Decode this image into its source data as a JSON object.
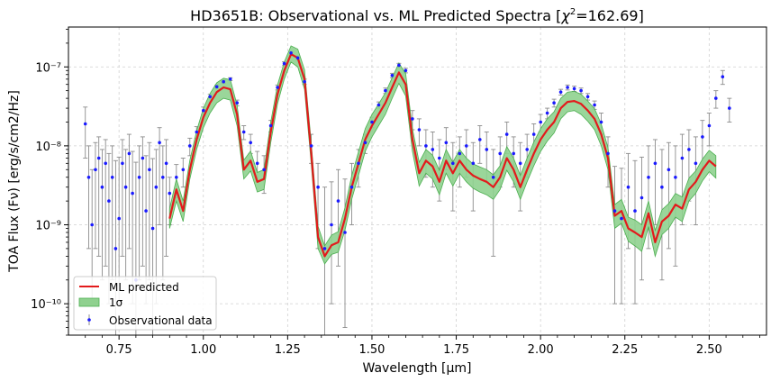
{
  "chart_data": {
    "type": "line",
    "title": "HD3651B: Observational vs. ML Predicted Spectra [χ²=162.69]",
    "title_parts": {
      "main": "HD3651B: Observational vs. ML Predicted Spectra [",
      "chi": "χ",
      "sup": "2",
      "rest": "=162.69]"
    },
    "xlabel": "Wavelength [μm]",
    "ylabel": "TOA Flux (Fν) [erg/s/cm2/Hz]",
    "xlim": [
      0.6,
      2.67
    ],
    "ylim": [
      4e-11,
      3.2e-07
    ],
    "yscale": "log",
    "grid": true,
    "x_ticks": [
      0.75,
      1.0,
      1.25,
      1.5,
      1.75,
      2.0,
      2.25,
      2.5
    ],
    "x_tick_labels": [
      "0.75",
      "1.00",
      "1.25",
      "1.50",
      "1.75",
      "2.00",
      "2.25",
      "2.50"
    ],
    "y_ticks": [
      1e-10,
      1e-09,
      1e-08,
      1e-07
    ],
    "y_tick_labels": [
      "10⁻¹⁰",
      "10⁻⁹",
      "10⁻⁸",
      "10⁻⁷"
    ],
    "legend": {
      "placement": "lower-left",
      "entries": [
        {
          "label": "ML predicted",
          "color": "#e31a1c"
        },
        {
          "label": "1σ",
          "color": "#8fd18f"
        },
        {
          "label": "Observational data",
          "color": "#1a1aff"
        }
      ]
    },
    "colors": {
      "predicted": "#e31a1c",
      "band": "#8fd18f",
      "band_edge": "#4caf50",
      "obs": "#1a1aff",
      "errorbar": "#8c8c8c"
    },
    "series": [
      {
        "name": "ML predicted",
        "x": [
          0.9,
          0.92,
          0.94,
          0.96,
          0.98,
          1.0,
          1.02,
          1.04,
          1.06,
          1.08,
          1.1,
          1.12,
          1.14,
          1.16,
          1.18,
          1.2,
          1.22,
          1.24,
          1.26,
          1.28,
          1.3,
          1.32,
          1.34,
          1.36,
          1.38,
          1.4,
          1.42,
          1.44,
          1.46,
          1.48,
          1.5,
          1.52,
          1.54,
          1.56,
          1.58,
          1.6,
          1.62,
          1.64,
          1.66,
          1.68,
          1.7,
          1.72,
          1.74,
          1.76,
          1.78,
          1.8,
          1.82,
          1.84,
          1.86,
          1.88,
          1.9,
          1.92,
          1.94,
          1.96,
          1.98,
          2.0,
          2.02,
          2.04,
          2.06,
          2.08,
          2.1,
          2.12,
          2.14,
          2.16,
          2.18,
          2.2,
          2.22,
          2.24,
          2.26,
          2.28,
          2.3,
          2.32,
          2.34,
          2.36,
          2.38,
          2.4,
          2.42,
          2.44,
          2.46,
          2.48,
          2.5,
          2.52
        ],
        "y": [
          1.2e-09,
          2.8e-09,
          1.5e-09,
          5e-09,
          1.2e-08,
          2.3e-08,
          3.5e-08,
          4.8e-08,
          5.5e-08,
          5.2e-08,
          2.5e-08,
          5e-09,
          6.5e-09,
          3.5e-09,
          3.8e-09,
          1.5e-08,
          4.5e-08,
          9e-08,
          1.45e-07,
          1.3e-07,
          7e-08,
          8e-09,
          7e-10,
          4e-10,
          5.5e-10,
          6e-10,
          1.2e-09,
          3e-09,
          6e-09,
          1.2e-08,
          1.8e-08,
          2.5e-08,
          3.5e-08,
          5.5e-08,
          8.5e-08,
          6e-08,
          1.2e-08,
          4.5e-09,
          6.5e-09,
          5.5e-09,
          3.5e-09,
          6.5e-09,
          4.5e-09,
          6.5e-09,
          5e-09,
          4.2e-09,
          3.8e-09,
          3.5e-09,
          3e-09,
          4e-09,
          7e-09,
          5e-09,
          3e-09,
          5e-09,
          8e-09,
          1.2e-08,
          1.6e-08,
          2e-08,
          3e-08,
          3.6e-08,
          3.7e-08,
          3.4e-08,
          2.8e-08,
          2.2e-08,
          1.4e-08,
          7e-09,
          1.3e-09,
          1.5e-09,
          9e-10,
          8e-10,
          7e-10,
          1.4e-09,
          6e-10,
          1.1e-09,
          1.3e-09,
          1.8e-09,
          1.6e-09,
          2.8e-09,
          3.5e-09,
          5e-09,
          6.5e-09,
          5.5e-09
        ]
      },
      {
        "name": "1σ",
        "x": [
          0.9,
          0.92,
          0.94,
          0.96,
          0.98,
          1.0,
          1.02,
          1.04,
          1.06,
          1.08,
          1.1,
          1.12,
          1.14,
          1.16,
          1.18,
          1.2,
          1.22,
          1.24,
          1.26,
          1.28,
          1.3,
          1.32,
          1.34,
          1.36,
          1.38,
          1.4,
          1.42,
          1.44,
          1.46,
          1.48,
          1.5,
          1.52,
          1.54,
          1.56,
          1.58,
          1.6,
          1.62,
          1.64,
          1.66,
          1.68,
          1.7,
          1.72,
          1.74,
          1.76,
          1.78,
          1.8,
          1.82,
          1.84,
          1.86,
          1.88,
          1.9,
          1.92,
          1.94,
          1.96,
          1.98,
          2.0,
          2.02,
          2.04,
          2.06,
          2.08,
          2.1,
          2.12,
          2.14,
          2.16,
          2.18,
          2.2,
          2.22,
          2.24,
          2.26,
          2.28,
          2.3,
          2.32,
          2.34,
          2.36,
          2.38,
          2.4,
          2.42,
          2.44,
          2.46,
          2.48,
          2.5,
          2.52
        ],
        "lower": [
          9e-10,
          2e-09,
          1.1e-09,
          3.8e-09,
          9e-09,
          1.7e-08,
          2.6e-08,
          3.5e-08,
          4e-08,
          3.8e-08,
          1.8e-08,
          3.8e-09,
          4.8e-09,
          2.6e-09,
          2.8e-09,
          1.1e-08,
          3.4e-08,
          7e-08,
          1.15e-07,
          1e-07,
          5.2e-08,
          5.8e-09,
          5e-10,
          3.2e-10,
          4.2e-10,
          4.5e-10,
          8.5e-10,
          2.1e-09,
          4.2e-09,
          8.5e-09,
          1.3e-08,
          1.8e-08,
          2.5e-08,
          4e-08,
          6.2e-08,
          4.3e-08,
          8.5e-09,
          3.1e-09,
          4.5e-09,
          3.8e-09,
          2.4e-09,
          4.5e-09,
          3.1e-09,
          4.5e-09,
          3.5e-09,
          2.9e-09,
          2.6e-09,
          2.4e-09,
          2.1e-09,
          2.8e-09,
          4.9e-09,
          3.5e-09,
          2.1e-09,
          3.5e-09,
          5.6e-09,
          8.5e-09,
          1.15e-08,
          1.45e-08,
          2.2e-08,
          2.7e-08,
          2.8e-08,
          2.5e-08,
          2.05e-08,
          1.6e-08,
          1e-08,
          5e-09,
          9e-10,
          1.05e-09,
          6.2e-10,
          5.4e-10,
          4.6e-10,
          9.5e-10,
          4e-10,
          7.5e-10,
          9e-10,
          1.25e-09,
          1.1e-09,
          2e-09,
          2.5e-09,
          3.6e-09,
          4.7e-09,
          3.9e-09
        ],
        "upper": [
          1.6e-09,
          3.8e-09,
          2e-09,
          6.6e-09,
          1.55e-08,
          3e-08,
          4.6e-08,
          6.3e-08,
          7.2e-08,
          6.9e-08,
          3.3e-08,
          6.6e-09,
          8.6e-09,
          4.6e-09,
          5e-09,
          2e-08,
          5.9e-08,
          1.15e-07,
          1.85e-07,
          1.68e-07,
          9.2e-08,
          1.08e-08,
          9.6e-10,
          5.4e-10,
          7.4e-10,
          8.2e-10,
          1.65e-09,
          4.2e-09,
          8.4e-09,
          1.65e-08,
          2.5e-08,
          3.4e-08,
          4.7e-08,
          7.3e-08,
          1.12e-07,
          8.2e-08,
          1.65e-08,
          6.2e-09,
          9e-09,
          7.6e-09,
          4.9e-09,
          9e-09,
          6.2e-09,
          9e-09,
          7e-09,
          5.9e-09,
          5.4e-09,
          5e-09,
          4.3e-09,
          5.6e-09,
          9.8e-09,
          7e-09,
          4.2e-09,
          7e-09,
          1.12e-08,
          1.65e-08,
          2.2e-08,
          2.7e-08,
          4e-08,
          4.8e-08,
          4.9e-08,
          4.5e-08,
          3.7e-08,
          2.95e-08,
          1.9e-08,
          9.5e-09,
          1.8e-09,
          2.1e-09,
          1.25e-09,
          1.15e-09,
          1e-09,
          2e-09,
          8.5e-10,
          1.55e-09,
          1.85e-09,
          2.5e-09,
          2.25e-09,
          3.9e-09,
          4.8e-09,
          6.8e-09,
          8.8e-09,
          7.5e-09
        ]
      },
      {
        "name": "Observational data",
        "x": [
          0.65,
          0.66,
          0.67,
          0.68,
          0.69,
          0.7,
          0.71,
          0.72,
          0.73,
          0.74,
          0.75,
          0.76,
          0.77,
          0.78,
          0.79,
          0.8,
          0.81,
          0.82,
          0.83,
          0.84,
          0.85,
          0.86,
          0.87,
          0.88,
          0.89,
          0.9,
          0.92,
          0.94,
          0.96,
          0.98,
          1.0,
          1.02,
          1.04,
          1.06,
          1.08,
          1.1,
          1.12,
          1.14,
          1.16,
          1.18,
          1.2,
          1.22,
          1.24,
          1.26,
          1.28,
          1.3,
          1.32,
          1.34,
          1.36,
          1.38,
          1.4,
          1.42,
          1.44,
          1.46,
          1.48,
          1.5,
          1.52,
          1.54,
          1.56,
          1.58,
          1.6,
          1.62,
          1.64,
          1.66,
          1.68,
          1.7,
          1.72,
          1.74,
          1.76,
          1.78,
          1.8,
          1.82,
          1.84,
          1.86,
          1.88,
          1.9,
          1.92,
          1.94,
          1.96,
          1.98,
          2.0,
          2.02,
          2.04,
          2.06,
          2.08,
          2.1,
          2.12,
          2.14,
          2.16,
          2.18,
          2.2,
          2.22,
          2.24,
          2.26,
          2.28,
          2.3,
          2.32,
          2.34,
          2.36,
          2.38,
          2.4,
          2.42,
          2.44,
          2.46,
          2.48,
          2.5,
          2.52,
          2.54,
          2.56
        ],
        "y": [
          1.9e-08,
          4e-09,
          1e-09,
          5e-09,
          7e-09,
          3e-09,
          6e-09,
          2e-09,
          4e-09,
          5e-10,
          1.2e-09,
          6e-09,
          3e-09,
          8e-09,
          2.5e-09,
          2e-10,
          4e-09,
          7e-09,
          1.5e-09,
          5e-09,
          9e-10,
          3e-09,
          1.1e-08,
          4e-09,
          6e-09,
          2.5e-09,
          4e-09,
          5e-09,
          1e-08,
          1.5e-08,
          2.8e-08,
          4.2e-08,
          5.6e-08,
          6.5e-08,
          7e-08,
          3.5e-08,
          1.5e-08,
          1.1e-08,
          6e-09,
          5e-09,
          1.8e-08,
          5.5e-08,
          1.1e-07,
          1.5e-07,
          1.3e-07,
          6.5e-08,
          1e-08,
          3e-09,
          5e-10,
          1e-09,
          2e-09,
          8e-10,
          3e-09,
          6e-09,
          1.1e-08,
          2e-08,
          3.3e-08,
          5e-08,
          7.8e-08,
          1.05e-07,
          9e-08,
          2.2e-08,
          1.6e-08,
          1e-08,
          9e-09,
          7e-09,
          1.1e-08,
          6e-09,
          8e-09,
          1e-08,
          6e-09,
          1.2e-08,
          9e-09,
          4e-09,
          8e-09,
          1.4e-08,
          8e-09,
          6e-09,
          9e-09,
          1.4e-08,
          2e-08,
          2.6e-08,
          3.5e-08,
          4.8e-08,
          5.5e-08,
          5.3e-08,
          5e-08,
          4.2e-08,
          3.3e-08,
          2e-08,
          8e-09,
          1.5e-09,
          1.2e-09,
          3e-09,
          1.5e-09,
          2.2e-09,
          4e-09,
          6e-09,
          3e-09,
          5e-09,
          4e-09,
          7e-09,
          9e-09,
          6e-09,
          1.3e-08,
          1.8e-08,
          4e-08,
          7.5e-08,
          3e-08
        ],
        "err_low": [
          1.2e-08,
          3.5e-09,
          9e-10,
          4.5e-09,
          6.6e-09,
          2.8e-09,
          5.7e-09,
          1.9e-09,
          3.8e-09,
          4.8e-10,
          1.1e-09,
          5.6e-09,
          2.8e-09,
          7.5e-09,
          2.4e-09,
          1.9e-10,
          3.8e-09,
          6.7e-09,
          1.4e-09,
          4.8e-09,
          8.6e-10,
          2.9e-09,
          1e-08,
          3.8e-09,
          5.6e-09,
          1.5e-09,
          1.8e-09,
          2e-09,
          2.5e-09,
          2.5e-09,
          3e-09,
          3e-09,
          3e-09,
          3e-09,
          3e-09,
          3e-09,
          3e-09,
          3e-09,
          2.5e-09,
          2.5e-09,
          3e-09,
          4e-09,
          6e-09,
          8e-09,
          8e-09,
          5e-09,
          4e-09,
          2.5e-09,
          4.7e-10,
          9e-10,
          1.7e-09,
          7.5e-10,
          2e-09,
          3e-09,
          3e-09,
          3e-09,
          3e-09,
          4e-09,
          5e-09,
          6e-09,
          6e-09,
          6e-09,
          6e-09,
          6e-09,
          6e-09,
          5e-09,
          6e-09,
          4.5e-09,
          5e-09,
          6e-09,
          4.5e-09,
          6e-09,
          5.5e-09,
          3.6e-09,
          5e-09,
          6e-09,
          5e-09,
          4.5e-09,
          5e-09,
          5e-09,
          5e-09,
          4e-09,
          4e-09,
          4e-09,
          4e-09,
          4e-09,
          4e-09,
          4e-09,
          4e-09,
          6e-09,
          5e-09,
          1.4e-09,
          1.1e-09,
          2.5e-09,
          1.4e-09,
          2e-09,
          3.5e-09,
          5e-09,
          2.8e-09,
          4.5e-09,
          3.7e-09,
          6e-09,
          7e-09,
          5e-09,
          8e-09,
          8e-09,
          1e-08,
          1.5e-08,
          1e-08
        ],
        "err_high": [
          1.2e-08,
          6e-09,
          4e-09,
          6e-09,
          6e-09,
          6e-09,
          6e-09,
          6e-09,
          6e-09,
          6e-09,
          6e-09,
          6e-09,
          6e-09,
          6e-09,
          6e-09,
          6e-09,
          6e-09,
          6e-09,
          6e-09,
          6e-09,
          6e-09,
          6e-09,
          6e-09,
          6e-09,
          6e-09,
          1.5e-09,
          1.8e-09,
          2e-09,
          2.5e-09,
          2.5e-09,
          3e-09,
          3e-09,
          3e-09,
          3e-09,
          3e-09,
          3e-09,
          3e-09,
          3e-09,
          2.5e-09,
          2.5e-09,
          3e-09,
          4e-09,
          6e-09,
          8e-09,
          8e-09,
          5e-09,
          4e-09,
          3e-09,
          2.5e-09,
          2.5e-09,
          3e-09,
          3e-09,
          3e-09,
          3e-09,
          3e-09,
          3e-09,
          3e-09,
          4e-09,
          5e-09,
          6e-09,
          6e-09,
          6e-09,
          6e-09,
          6e-09,
          6e-09,
          5e-09,
          6e-09,
          5e-09,
          5e-09,
          6e-09,
          5e-09,
          6e-09,
          6e-09,
          5e-09,
          5e-09,
          6e-09,
          5e-09,
          5e-09,
          5e-09,
          5e-09,
          5e-09,
          4e-09,
          4e-09,
          4e-09,
          4e-09,
          4e-09,
          4e-09,
          4e-09,
          4e-09,
          6e-09,
          5e-09,
          4e-09,
          4e-09,
          5e-09,
          5e-09,
          5e-09,
          6e-09,
          6e-09,
          6e-09,
          6e-09,
          6e-09,
          7e-09,
          7e-09,
          7e-09,
          8e-09,
          8e-09,
          1e-08,
          1.5e-08,
          1e-08
        ]
      }
    ]
  }
}
